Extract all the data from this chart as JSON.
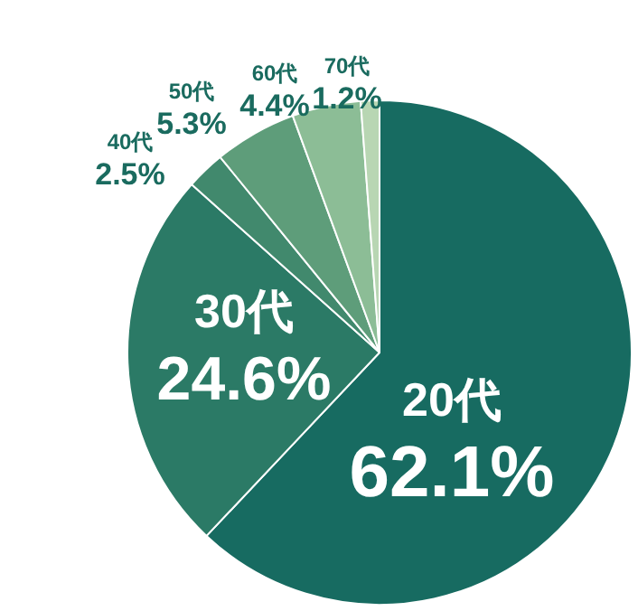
{
  "chart_data": {
    "type": "pie",
    "categories": [
      "20代",
      "30代",
      "40代",
      "50代",
      "60代",
      "70代"
    ],
    "values": [
      62.1,
      24.6,
      2.5,
      5.3,
      4.4,
      1.2
    ],
    "value_labels": [
      "62.1%",
      "24.6%",
      "2.5%",
      "5.3%",
      "4.4%",
      "1.2%"
    ],
    "colors": [
      "#176b61",
      "#2b7a66",
      "#41896d",
      "#5e9d7a",
      "#8cbd96",
      "#b8d6b3"
    ],
    "legend": false
  }
}
